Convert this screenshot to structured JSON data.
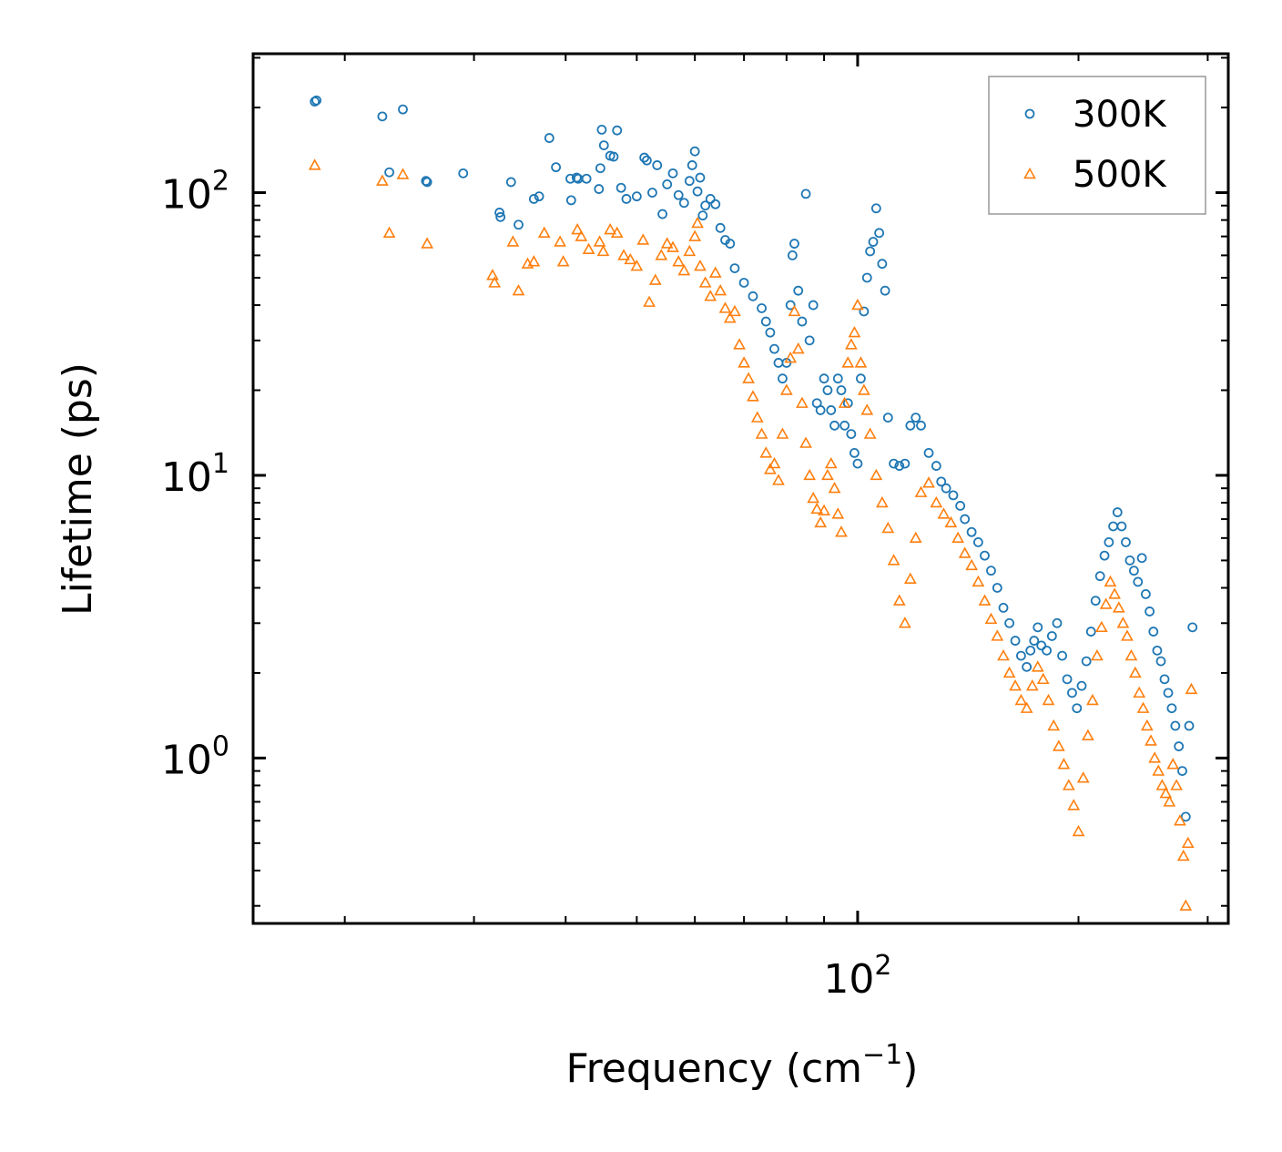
{
  "chart_data": {
    "type": "scatter",
    "title": "",
    "xlabel": "Frequency (cm",
    "xlabel_superscript": "−1",
    "xlabel_suffix": ")",
    "ylabel": "Lifetime (ps)",
    "xscale": "log",
    "yscale": "log",
    "xlim": [
      15,
      320
    ],
    "ylim": [
      0.26,
      310
    ],
    "x_ticks": [
      {
        "value": 100,
        "base": "10",
        "exp": "2"
      }
    ],
    "y_ticks": [
      {
        "value": 1,
        "base": "10",
        "exp": "0"
      },
      {
        "value": 10,
        "base": "10",
        "exp": "1"
      },
      {
        "value": 100,
        "base": "10",
        "exp": "2"
      }
    ],
    "legend_position": "top-right",
    "series": [
      {
        "name": "300K",
        "marker": "circle",
        "color": "#1f77b4",
        "points": [
          [
            18.2,
            210
          ],
          [
            18.3,
            212
          ],
          [
            22.5,
            186
          ],
          [
            24.0,
            197
          ],
          [
            23.0,
            118
          ],
          [
            25.8,
            110
          ],
          [
            25.9,
            109
          ],
          [
            29.0,
            117
          ],
          [
            32.5,
            85
          ],
          [
            32.6,
            82
          ],
          [
            33.7,
            109
          ],
          [
            34.5,
            77
          ],
          [
            36.2,
            95
          ],
          [
            36.8,
            97
          ],
          [
            38.0,
            156
          ],
          [
            38.8,
            123
          ],
          [
            40.6,
            112
          ],
          [
            40.7,
            94
          ],
          [
            41.4,
            113
          ],
          [
            41.6,
            112
          ],
          [
            42.7,
            112
          ],
          [
            44.4,
            103
          ],
          [
            44.6,
            122
          ],
          [
            44.8,
            167
          ],
          [
            45.1,
            147
          ],
          [
            46.0,
            135
          ],
          [
            46.5,
            134
          ],
          [
            47.0,
            166
          ],
          [
            47.6,
            104
          ],
          [
            48.4,
            95
          ],
          [
            50.0,
            97
          ],
          [
            51.2,
            133
          ],
          [
            51.6,
            130
          ],
          [
            52.5,
            100
          ],
          [
            53.3,
            125
          ],
          [
            54.2,
            84
          ],
          [
            55.0,
            107
          ],
          [
            56.0,
            117
          ],
          [
            57.0,
            98
          ],
          [
            58.0,
            92
          ],
          [
            59.0,
            110
          ],
          [
            59.5,
            125
          ],
          [
            60.0,
            140
          ],
          [
            60.5,
            101
          ],
          [
            61.0,
            113
          ],
          [
            61.5,
            83
          ],
          [
            62.0,
            90
          ],
          [
            63.0,
            95
          ],
          [
            64.0,
            91
          ],
          [
            65.0,
            75
          ],
          [
            66.0,
            68
          ],
          [
            67.0,
            66
          ],
          [
            68.0,
            54
          ],
          [
            70.0,
            48
          ],
          [
            72.0,
            43
          ],
          [
            74.0,
            39
          ],
          [
            75.0,
            35
          ],
          [
            76.0,
            32
          ],
          [
            77.0,
            28
          ],
          [
            78.0,
            25
          ],
          [
            79.0,
            22
          ],
          [
            80.0,
            25
          ],
          [
            81.0,
            40
          ],
          [
            81.5,
            60
          ],
          [
            82.0,
            66
          ],
          [
            83.0,
            45
          ],
          [
            84.0,
            35
          ],
          [
            85.0,
            99
          ],
          [
            86.0,
            30
          ],
          [
            87.0,
            40
          ],
          [
            88.0,
            18
          ],
          [
            89.0,
            17
          ],
          [
            90.0,
            22
          ],
          [
            91.0,
            20
          ],
          [
            92.0,
            17
          ],
          [
            93.0,
            15
          ],
          [
            94.0,
            22
          ],
          [
            95.0,
            20
          ],
          [
            96.0,
            15
          ],
          [
            97.0,
            18
          ],
          [
            98.0,
            14
          ],
          [
            99.0,
            12
          ],
          [
            100.0,
            11
          ],
          [
            101.0,
            22
          ],
          [
            102.0,
            38
          ],
          [
            103.0,
            50
          ],
          [
            104.0,
            62
          ],
          [
            105.0,
            67
          ],
          [
            106.0,
            88
          ],
          [
            107.0,
            72
          ],
          [
            108.0,
            56
          ],
          [
            109.0,
            45
          ],
          [
            110.0,
            16
          ],
          [
            112.0,
            11
          ],
          [
            114.0,
            10.8
          ],
          [
            116.0,
            11
          ],
          [
            118.0,
            15
          ],
          [
            120.0,
            16
          ],
          [
            122.0,
            15
          ],
          [
            125.0,
            12
          ],
          [
            128.0,
            10.8
          ],
          [
            130.0,
            9.5
          ],
          [
            132.0,
            9.0
          ],
          [
            135.0,
            8.5
          ],
          [
            138.0,
            7.8
          ],
          [
            140.0,
            7.0
          ],
          [
            143.0,
            6.3
          ],
          [
            146.0,
            5.8
          ],
          [
            149.0,
            5.2
          ],
          [
            152.0,
            4.6
          ],
          [
            155.0,
            4.0
          ],
          [
            158.0,
            3.4
          ],
          [
            161.0,
            3.0
          ],
          [
            164.0,
            2.6
          ],
          [
            167.0,
            2.3
          ],
          [
            170.0,
            2.1
          ],
          [
            172.0,
            2.4
          ],
          [
            174.0,
            2.6
          ],
          [
            176.0,
            2.9
          ],
          [
            178.0,
            2.5
          ],
          [
            181.0,
            2.4
          ],
          [
            184.0,
            2.7
          ],
          [
            187.0,
            3.0
          ],
          [
            190.0,
            2.3
          ],
          [
            193.0,
            1.9
          ],
          [
            196.0,
            1.7
          ],
          [
            199.0,
            1.5
          ],
          [
            202.0,
            1.8
          ],
          [
            205.0,
            2.2
          ],
          [
            208.0,
            2.8
          ],
          [
            211.0,
            3.6
          ],
          [
            214.0,
            4.4
          ],
          [
            217.0,
            5.2
          ],
          [
            220.0,
            5.8
          ],
          [
            223.0,
            6.6
          ],
          [
            226.0,
            7.4
          ],
          [
            229.0,
            6.6
          ],
          [
            232.0,
            5.8
          ],
          [
            235.0,
            5.0
          ],
          [
            238.0,
            4.6
          ],
          [
            241.0,
            4.2
          ],
          [
            244.0,
            5.1
          ],
          [
            247.0,
            3.8
          ],
          [
            250.0,
            3.3
          ],
          [
            253.0,
            2.8
          ],
          [
            256.0,
            2.4
          ],
          [
            259.0,
            2.2
          ],
          [
            262.0,
            1.9
          ],
          [
            265.0,
            1.7
          ],
          [
            268.0,
            1.5
          ],
          [
            271.0,
            1.3
          ],
          [
            274.0,
            1.1
          ],
          [
            277.0,
            0.9
          ],
          [
            280.0,
            0.62
          ],
          [
            283.0,
            1.3
          ],
          [
            286.0,
            2.9
          ]
        ]
      },
      {
        "name": "500K",
        "marker": "triangle",
        "color": "#ff7f0e",
        "points": [
          [
            18.2,
            125
          ],
          [
            22.5,
            110
          ],
          [
            24.0,
            116
          ],
          [
            25.9,
            66
          ],
          [
            23.0,
            72
          ],
          [
            31.8,
            51
          ],
          [
            32.0,
            48
          ],
          [
            33.9,
            67
          ],
          [
            34.5,
            45
          ],
          [
            35.5,
            56
          ],
          [
            36.2,
            57
          ],
          [
            37.4,
            72
          ],
          [
            39.3,
            67
          ],
          [
            39.7,
            57
          ],
          [
            41.5,
            74
          ],
          [
            42.0,
            70
          ],
          [
            43.0,
            63
          ],
          [
            44.5,
            67
          ],
          [
            45.0,
            62
          ],
          [
            46.0,
            74
          ],
          [
            47.0,
            72
          ],
          [
            48.0,
            60
          ],
          [
            49.0,
            58
          ],
          [
            50.0,
            55
          ],
          [
            51.0,
            68
          ],
          [
            52.0,
            41
          ],
          [
            53.0,
            49
          ],
          [
            54.0,
            60
          ],
          [
            55.0,
            66
          ],
          [
            56.0,
            64
          ],
          [
            57.0,
            57
          ],
          [
            58.0,
            53
          ],
          [
            59.0,
            62
          ],
          [
            60.0,
            70
          ],
          [
            60.5,
            78
          ],
          [
            61.0,
            55
          ],
          [
            62.0,
            48
          ],
          [
            63.0,
            43
          ],
          [
            64.0,
            52
          ],
          [
            65.0,
            45
          ],
          [
            66.0,
            39
          ],
          [
            67.0,
            36
          ],
          [
            68.0,
            38
          ],
          [
            69.0,
            29
          ],
          [
            70.0,
            25
          ],
          [
            71.0,
            22
          ],
          [
            72.0,
            19
          ],
          [
            73.0,
            16
          ],
          [
            74.0,
            14
          ],
          [
            75.0,
            12
          ],
          [
            76.0,
            10.5
          ],
          [
            77.0,
            11
          ],
          [
            78.0,
            9.6
          ],
          [
            79.0,
            14
          ],
          [
            80.0,
            20
          ],
          [
            81.0,
            26
          ],
          [
            82.0,
            38
          ],
          [
            83.0,
            28
          ],
          [
            84.0,
            18
          ],
          [
            85.0,
            13
          ],
          [
            86.0,
            10
          ],
          [
            87.0,
            8.3
          ],
          [
            88.0,
            7.6
          ],
          [
            89.0,
            6.8
          ],
          [
            90.0,
            7.5
          ],
          [
            91.0,
            10
          ],
          [
            92.0,
            11
          ],
          [
            93.0,
            9.0
          ],
          [
            94.0,
            7.3
          ],
          [
            95.0,
            6.3
          ],
          [
            96.0,
            18
          ],
          [
            97.0,
            25
          ],
          [
            98.0,
            29
          ],
          [
            99.0,
            32
          ],
          [
            100.0,
            40
          ],
          [
            101.0,
            25
          ],
          [
            102.0,
            20
          ],
          [
            103.0,
            17
          ],
          [
            104.0,
            14
          ],
          [
            106.0,
            10
          ],
          [
            108.0,
            8.0
          ],
          [
            110.0,
            6.5
          ],
          [
            112.0,
            5.0
          ],
          [
            114.0,
            3.6
          ],
          [
            116.0,
            3.0
          ],
          [
            118.0,
            4.3
          ],
          [
            120.0,
            6.0
          ],
          [
            122.0,
            8.7
          ],
          [
            125.0,
            9.4
          ],
          [
            128.0,
            8.0
          ],
          [
            131.0,
            7.3
          ],
          [
            134.0,
            6.8
          ],
          [
            137.0,
            6.0
          ],
          [
            140.0,
            5.3
          ],
          [
            143.0,
            4.8
          ],
          [
            146.0,
            4.2
          ],
          [
            149.0,
            3.6
          ],
          [
            152.0,
            3.1
          ],
          [
            155.0,
            2.7
          ],
          [
            158.0,
            2.3
          ],
          [
            161.0,
            2.0
          ],
          [
            164.0,
            1.8
          ],
          [
            167.0,
            1.6
          ],
          [
            170.0,
            1.5
          ],
          [
            173.0,
            1.8
          ],
          [
            176.0,
            2.1
          ],
          [
            179.0,
            1.9
          ],
          [
            182.0,
            1.6
          ],
          [
            185.0,
            1.3
          ],
          [
            188.0,
            1.1
          ],
          [
            191.0,
            0.95
          ],
          [
            194.0,
            0.8
          ],
          [
            197.0,
            0.68
          ],
          [
            200.0,
            0.55
          ],
          [
            203.0,
            0.85
          ],
          [
            206.0,
            1.2
          ],
          [
            209.0,
            1.6
          ],
          [
            212.0,
            2.3
          ],
          [
            215.0,
            2.9
          ],
          [
            218.0,
            3.5
          ],
          [
            221.0,
            4.2
          ],
          [
            224.0,
            3.8
          ],
          [
            227.0,
            3.4
          ],
          [
            230.0,
            3.0
          ],
          [
            233.0,
            2.7
          ],
          [
            236.0,
            2.3
          ],
          [
            239.0,
            2.0
          ],
          [
            242.0,
            1.7
          ],
          [
            245.0,
            1.5
          ],
          [
            248.0,
            1.3
          ],
          [
            251.0,
            1.15
          ],
          [
            254.0,
            1.0
          ],
          [
            257.0,
            0.9
          ],
          [
            260.0,
            0.8
          ],
          [
            263.0,
            0.75
          ],
          [
            266.0,
            0.7
          ],
          [
            269.0,
            0.95
          ],
          [
            272.0,
            0.8
          ],
          [
            275.0,
            0.6
          ],
          [
            278.0,
            0.45
          ],
          [
            280.0,
            0.3
          ],
          [
            282.0,
            0.5
          ],
          [
            285.0,
            1.75
          ]
        ]
      }
    ]
  }
}
